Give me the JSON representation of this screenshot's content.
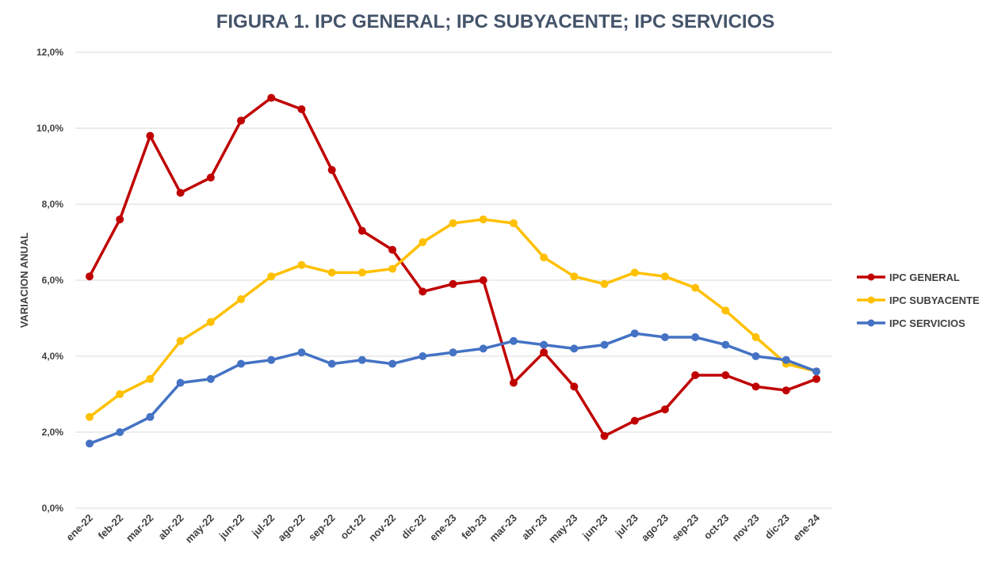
{
  "chart_data": {
    "type": "line",
    "title": "FIGURA 1. IPC GENERAL; IPC SUBYACENTE; IPC SERVICIOS",
    "xlabel": "",
    "ylabel": "VARIACION ANUAL",
    "ylim": [
      0,
      12
    ],
    "yticks": [
      {
        "value": 0,
        "label": "0,0%"
      },
      {
        "value": 2,
        "label": "2,0%"
      },
      {
        "value": 4,
        "label": "4,0%"
      },
      {
        "value": 6,
        "label": "6,0%"
      },
      {
        "value": 8,
        "label": "8,0%"
      },
      {
        "value": 10,
        "label": "10,0%"
      },
      {
        "value": 12,
        "label": "12,0%"
      }
    ],
    "grid": true,
    "legend_position": "right",
    "categories": [
      "ene-22",
      "feb-22",
      "mar-22",
      "abr-22",
      "may-22",
      "jun-22",
      "jul-22",
      "ago-22",
      "sep-22",
      "oct-22",
      "nov-22",
      "dic-22",
      "ene-23",
      "feb-23",
      "mar-23",
      "abr-23",
      "may-23",
      "jun-23",
      "jul-23",
      "ago-23",
      "sep-23",
      "oct-23",
      "nov-23",
      "dic-23",
      "ene-24"
    ],
    "series": [
      {
        "name": "IPC GENERAL",
        "color": "#c00000",
        "values": [
          6.1,
          7.6,
          9.8,
          8.3,
          8.7,
          10.2,
          10.8,
          10.5,
          8.9,
          7.3,
          6.8,
          5.7,
          5.9,
          6.0,
          3.3,
          4.1,
          3.2,
          1.9,
          2.3,
          2.6,
          3.5,
          3.5,
          3.2,
          3.1,
          3.4
        ]
      },
      {
        "name": "IPC SUBYACENTE",
        "color": "#ffc000",
        "values": [
          2.4,
          3.0,
          3.4,
          4.4,
          4.9,
          5.5,
          6.1,
          6.4,
          6.2,
          6.2,
          6.3,
          7.0,
          7.5,
          7.6,
          7.5,
          6.6,
          6.1,
          5.9,
          6.2,
          6.1,
          5.8,
          5.2,
          4.5,
          3.8,
          3.6
        ]
      },
      {
        "name": "IPC SERVICIOS",
        "color": "#4472c4",
        "values": [
          1.7,
          2.0,
          2.4,
          3.3,
          3.4,
          3.8,
          3.9,
          4.1,
          3.8,
          3.9,
          3.8,
          4.0,
          4.1,
          4.2,
          4.4,
          4.3,
          4.2,
          4.3,
          4.6,
          4.5,
          4.5,
          4.3,
          4.0,
          3.9,
          3.6
        ]
      }
    ]
  }
}
